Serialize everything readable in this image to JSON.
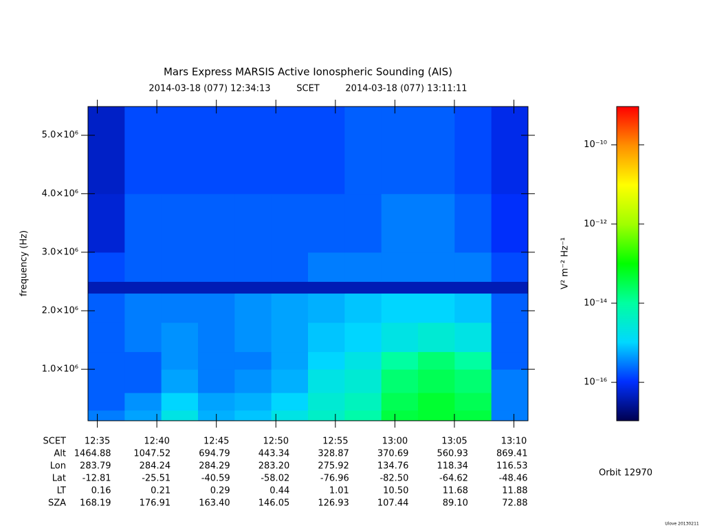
{
  "chart_data": {
    "type": "heatmap",
    "title": "Mars Express MARSIS Active Ionospheric Sounding (AIS)",
    "subtitle": [
      "2014-03-18 (077) 12:34:13",
      "SCET",
      "2014-03-18 (077) 13:11:11"
    ],
    "y_label": "frequency (Hz)",
    "xlim": [
      "12:34:13",
      "13:11:11"
    ],
    "xticks": [
      "12:35",
      "12:40",
      "12:45",
      "12:50",
      "12:55",
      "13:00",
      "13:05",
      "13:10"
    ],
    "ylim": [
      120000,
      5490000
    ],
    "yticks": [
      {
        "value": 1000000,
        "label": "1.0×10⁶"
      },
      {
        "value": 2000000,
        "label": "2.0×10⁶"
      },
      {
        "value": 3000000,
        "label": "3.0×10⁶"
      },
      {
        "value": 4000000,
        "label": "4.0×10⁶"
      },
      {
        "value": 5000000,
        "label": "5.0×10⁶"
      }
    ],
    "ybins": [
      120000,
      300000,
      600000,
      1000000,
      1300000,
      1800000,
      2300000,
      2500000,
      3000000,
      4000000,
      5490000
    ],
    "z": [
      [
        3e-16,
        5e-16,
        2e-15,
        6e-16,
        8e-16,
        2e-15,
        4e-15,
        8e-15,
        4e-14,
        5e-14,
        4e-14,
        3e-16
      ],
      [
        2e-16,
        4e-16,
        1e-15,
        5e-16,
        6e-16,
        1e-15,
        3e-15,
        5e-15,
        3e-14,
        5e-14,
        3e-14,
        3e-16
      ],
      [
        2e-16,
        2e-16,
        5e-16,
        3e-16,
        4e-16,
        6e-16,
        2e-15,
        3e-15,
        2e-14,
        3e-14,
        2e-14,
        3e-16
      ],
      [
        2e-16,
        2e-16,
        4e-16,
        3e-16,
        3e-16,
        5e-16,
        1e-15,
        2e-15,
        1e-14,
        2e-14,
        1e-14,
        2e-16
      ],
      [
        2e-16,
        3e-16,
        4e-16,
        3e-16,
        4e-16,
        5e-16,
        8e-16,
        1e-15,
        2e-15,
        3e-15,
        2e-15,
        2e-16
      ],
      [
        2e-16,
        3e-16,
        3e-16,
        3e-16,
        4e-16,
        5e-16,
        6e-16,
        8e-16,
        1e-15,
        1e-15,
        8e-16,
        2e-16
      ],
      [
        4e-17,
        4e-17,
        4e-17,
        4e-17,
        4e-17,
        4e-17,
        4e-17,
        4e-17,
        4e-17,
        4e-17,
        4e-17,
        4e-17
      ],
      [
        1.5e-16,
        2e-16,
        2e-16,
        2e-16,
        2e-16,
        2e-16,
        3e-16,
        3e-16,
        3e-16,
        3e-16,
        3e-16,
        1.5e-16
      ],
      [
        6e-17,
        2e-16,
        2e-16,
        2e-16,
        2e-16,
        2e-16,
        2e-16,
        2e-16,
        3e-16,
        3e-16,
        2e-16,
        1e-16
      ],
      [
        5e-17,
        1.5e-16,
        1.5e-16,
        1.5e-16,
        1.5e-16,
        1.5e-16,
        1.5e-16,
        2e-16,
        2e-16,
        2e-16,
        1.5e-16,
        8e-17
      ]
    ],
    "colorbar": {
      "label": "V² m⁻² Hz⁻¹",
      "scale": "log",
      "lim": [
        1.07e-17,
        9.3e-10
      ],
      "ticks": [
        {
          "value": 1e-16,
          "label": "10⁻¹⁶"
        },
        {
          "value": 1e-14,
          "label": "10⁻¹⁴"
        },
        {
          "value": 1e-12,
          "label": "10⁻¹²"
        },
        {
          "value": 1e-10,
          "label": "10⁻¹⁰"
        }
      ],
      "colors": [
        "#000050",
        "#0030ff",
        "#00d8ff",
        "#00ffa0",
        "#00ff00",
        "#a0ff00",
        "#ffff00",
        "#ff9000",
        "#ff0000"
      ]
    },
    "ephemeris": {
      "header": "SCET",
      "rows": [
        {
          "label": "Alt",
          "cells": [
            "1464.88",
            "1047.52",
            "694.79",
            "443.34",
            "328.87",
            "370.69",
            "560.93",
            "869.41"
          ]
        },
        {
          "label": "Lon",
          "cells": [
            "283.79",
            "284.24",
            "284.29",
            "283.20",
            "275.92",
            "134.76",
            "118.34",
            "116.53"
          ]
        },
        {
          "label": "Lat",
          "cells": [
            "-12.81",
            "-25.51",
            "-40.59",
            "-58.02",
            "-76.96",
            "-82.50",
            "-64.62",
            "-48.46"
          ]
        },
        {
          "label": "LT",
          "cells": [
            "0.16",
            "0.21",
            "0.29",
            "0.44",
            "1.01",
            "10.50",
            "11.68",
            "11.88"
          ]
        },
        {
          "label": "SZA",
          "cells": [
            "168.19",
            "176.91",
            "163.40",
            "146.05",
            "126.93",
            "107.44",
            "89.10",
            "72.88"
          ]
        }
      ]
    },
    "annotations": [
      "Orbit 12970",
      "Ulove 20130211"
    ]
  }
}
